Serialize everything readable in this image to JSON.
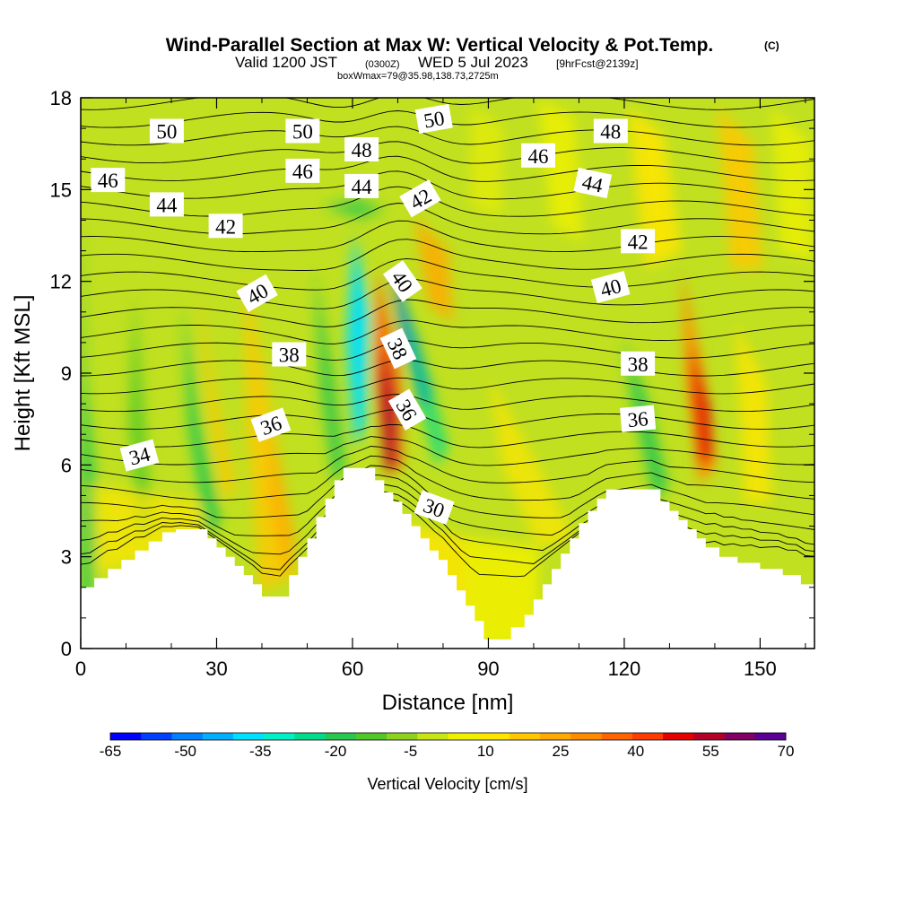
{
  "chart_data": {
    "type": "heatmap",
    "title": "Wind-Parallel Section at Max W: Vertical Velocity & Pot.Temp.",
    "title_mark": "(C)",
    "subtitle_parts": [
      "Valid 1200 JST",
      "(0300Z)",
      "WED 5 Jul 2023",
      "[9hrFcst@2139z]"
    ],
    "info_line": "boxWmax=79@35.98,138.73,2725m",
    "xlabel": "Distance [nm]",
    "ylabel": "Height [Kft MSL]",
    "xlim": [
      0,
      162
    ],
    "ylim": [
      0,
      18
    ],
    "x_ticks": [
      "0",
      "30",
      "60",
      "90",
      "120",
      "150"
    ],
    "y_ticks": [
      "0",
      "3",
      "6",
      "9",
      "12",
      "15",
      "18"
    ],
    "colorbar": {
      "label": "Vertical Velocity [cm/s]",
      "tick_labels": [
        "-65",
        "-50",
        "-35",
        "-20",
        "-5",
        "10",
        "25",
        "40",
        "55",
        "70"
      ],
      "colors": [
        "#0000ff",
        "#0040ff",
        "#0080ff",
        "#00b0ff",
        "#00e0ff",
        "#00f0c8",
        "#00dc8c",
        "#28c850",
        "#50c828",
        "#8cd21e",
        "#c8e614",
        "#f0f000",
        "#ffe600",
        "#ffc800",
        "#ffaa00",
        "#ff8c00",
        "#ff6400",
        "#ff3c00",
        "#e60000",
        "#b40028",
        "#820064",
        "#5a0096"
      ]
    },
    "contour_labels": [
      {
        "text": "50",
        "x": 19,
        "y": 16.9,
        "angle": 0
      },
      {
        "text": "50",
        "x": 49,
        "y": 16.9,
        "angle": 0
      },
      {
        "text": "50",
        "x": 78,
        "y": 17.3,
        "angle": -10
      },
      {
        "text": "48",
        "x": 62,
        "y": 16.3,
        "angle": 0
      },
      {
        "text": "48",
        "x": 117,
        "y": 16.9,
        "angle": 0
      },
      {
        "text": "46",
        "x": 6,
        "y": 15.3,
        "angle": 0
      },
      {
        "text": "46",
        "x": 49,
        "y": 15.6,
        "angle": 0
      },
      {
        "text": "46",
        "x": 101,
        "y": 16.1,
        "angle": 0
      },
      {
        "text": "44",
        "x": 19,
        "y": 14.5,
        "angle": 0
      },
      {
        "text": "44",
        "x": 62,
        "y": 15.1,
        "angle": 0
      },
      {
        "text": "44",
        "x": 113,
        "y": 15.2,
        "angle": 12
      },
      {
        "text": "42",
        "x": 32,
        "y": 13.8,
        "angle": 0
      },
      {
        "text": "42",
        "x": 75,
        "y": 14.7,
        "angle": -30
      },
      {
        "text": "42",
        "x": 123,
        "y": 13.3,
        "angle": 0
      },
      {
        "text": "40",
        "x": 39,
        "y": 11.6,
        "angle": -30
      },
      {
        "text": "40",
        "x": 71,
        "y": 12.0,
        "angle": 55
      },
      {
        "text": "40",
        "x": 117,
        "y": 11.8,
        "angle": -15
      },
      {
        "text": "38",
        "x": 46,
        "y": 9.6,
        "angle": 0
      },
      {
        "text": "38",
        "x": 70,
        "y": 9.8,
        "angle": 65
      },
      {
        "text": "38",
        "x": 123,
        "y": 9.3,
        "angle": 0
      },
      {
        "text": "36",
        "x": 42,
        "y": 7.3,
        "angle": -20
      },
      {
        "text": "36",
        "x": 72,
        "y": 7.8,
        "angle": 60
      },
      {
        "text": "36",
        "x": 123,
        "y": 7.5,
        "angle": -5
      },
      {
        "text": "34",
        "x": 13,
        "y": 6.3,
        "angle": -15
      },
      {
        "text": "30",
        "x": 78,
        "y": 4.6,
        "angle": 20
      }
    ],
    "terrain": [
      [
        0,
        2
      ],
      [
        3,
        2
      ],
      [
        3,
        2.3
      ],
      [
        6,
        2.3
      ],
      [
        6,
        2.6
      ],
      [
        9,
        2.6
      ],
      [
        9,
        2.9
      ],
      [
        12,
        2.9
      ],
      [
        12,
        3.2
      ],
      [
        15,
        3.2
      ],
      [
        15,
        3.5
      ],
      [
        18,
        3.5
      ],
      [
        18,
        3.8
      ],
      [
        21,
        3.8
      ],
      [
        21,
        3.9
      ],
      [
        28,
        3.9
      ],
      [
        28,
        3.6
      ],
      [
        30,
        3.6
      ],
      [
        30,
        3.3
      ],
      [
        32,
        3.3
      ],
      [
        32,
        3.0
      ],
      [
        34,
        3.0
      ],
      [
        34,
        2.7
      ],
      [
        36,
        2.7
      ],
      [
        36,
        2.4
      ],
      [
        38,
        2.4
      ],
      [
        38,
        2.1
      ],
      [
        40,
        2.1
      ],
      [
        40,
        1.7
      ],
      [
        46,
        1.7
      ],
      [
        46,
        2.4
      ],
      [
        48,
        2.4
      ],
      [
        48,
        3.0
      ],
      [
        50,
        3.0
      ],
      [
        50,
        3.6
      ],
      [
        52,
        3.6
      ],
      [
        52,
        4.3
      ],
      [
        54,
        4.3
      ],
      [
        54,
        4.9
      ],
      [
        56,
        4.9
      ],
      [
        56,
        5.5
      ],
      [
        58,
        5.5
      ],
      [
        58,
        5.9
      ],
      [
        65,
        5.9
      ],
      [
        65,
        5.5
      ],
      [
        67,
        5.5
      ],
      [
        67,
        5.1
      ],
      [
        69,
        5.1
      ],
      [
        69,
        4.8
      ],
      [
        71,
        4.8
      ],
      [
        71,
        4.4
      ],
      [
        73,
        4.4
      ],
      [
        73,
        4.0
      ],
      [
        75,
        4.0
      ],
      [
        75,
        3.6
      ],
      [
        77,
        3.6
      ],
      [
        77,
        3.2
      ],
      [
        79,
        3.2
      ],
      [
        79,
        2.9
      ],
      [
        81,
        2.9
      ],
      [
        81,
        2.4
      ],
      [
        83,
        2.4
      ],
      [
        83,
        1.9
      ],
      [
        85,
        1.9
      ],
      [
        85,
        1.4
      ],
      [
        87,
        1.4
      ],
      [
        87,
        0.9
      ],
      [
        89,
        0.9
      ],
      [
        89,
        0.3
      ],
      [
        95,
        0.3
      ],
      [
        95,
        0.7
      ],
      [
        98,
        0.7
      ],
      [
        98,
        1.1
      ],
      [
        100,
        1.1
      ],
      [
        100,
        1.6
      ],
      [
        102,
        1.6
      ],
      [
        102,
        2.1
      ],
      [
        104,
        2.1
      ],
      [
        104,
        2.6
      ],
      [
        106,
        2.6
      ],
      [
        106,
        3.1
      ],
      [
        108,
        3.1
      ],
      [
        108,
        3.6
      ],
      [
        110,
        3.6
      ],
      [
        110,
        4.1
      ],
      [
        112,
        4.1
      ],
      [
        112,
        4.5
      ],
      [
        114,
        4.5
      ],
      [
        114,
        4.9
      ],
      [
        116,
        4.9
      ],
      [
        116,
        5.2
      ],
      [
        128,
        5.2
      ],
      [
        128,
        4.8
      ],
      [
        130,
        4.8
      ],
      [
        130,
        4.5
      ],
      [
        132,
        4.5
      ],
      [
        132,
        4.2
      ],
      [
        134,
        4.2
      ],
      [
        134,
        3.9
      ],
      [
        136,
        3.9
      ],
      [
        136,
        3.6
      ],
      [
        138,
        3.6
      ],
      [
        138,
        3.3
      ],
      [
        141,
        3.3
      ],
      [
        141,
        3.0
      ],
      [
        145,
        3.0
      ],
      [
        145,
        2.8
      ],
      [
        150,
        2.8
      ],
      [
        150,
        2.6
      ],
      [
        155,
        2.6
      ],
      [
        155,
        2.4
      ],
      [
        159,
        2.4
      ],
      [
        159,
        2.1
      ],
      [
        162,
        2.1
      ]
    ]
  }
}
